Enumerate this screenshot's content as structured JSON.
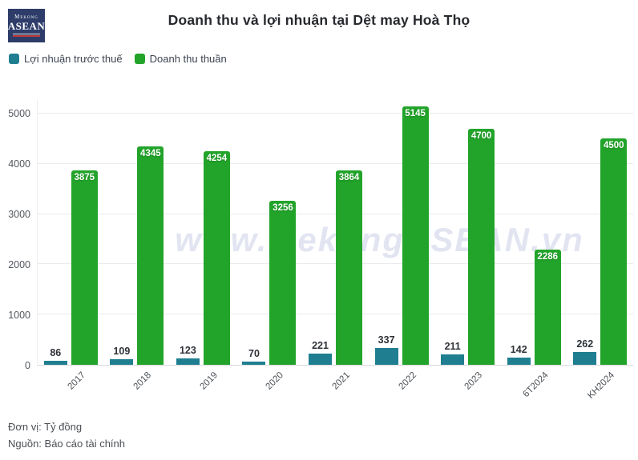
{
  "logo": {
    "line1": "Mekong",
    "line2": "ASEAN"
  },
  "header": {
    "title": "Doanh thu và lợi nhuận tại Dệt may Hoà Thọ"
  },
  "watermark": "www.MekongASEAN.vn",
  "footer": {
    "unit": "Đơn vị: Tỷ đồng",
    "source": "Nguồn: Báo cáo tài chính"
  },
  "colors": {
    "profit": "#1f7f91",
    "revenue": "#22a42a",
    "logo_bg": "#2d3c69",
    "watermark": "#b9c1de"
  },
  "chart_data": {
    "type": "bar",
    "title": "Doanh thu và lợi nhuận tại Dệt may Hoà Thọ",
    "categories": [
      "2017",
      "2018",
      "2019",
      "2020",
      "2021",
      "2022",
      "2023",
      "6T2024",
      "KH2024"
    ],
    "series": [
      {
        "name": "Lợi nhuận trước thuế",
        "color": "#1f7f91",
        "label_position": "above",
        "values": [
          86,
          109,
          123,
          70,
          221,
          337,
          211,
          142,
          262
        ]
      },
      {
        "name": "Doanh thu thuần",
        "color": "#22a42a",
        "label_position": "inside",
        "values": [
          3875,
          4345,
          4254,
          3256,
          3864,
          5145,
          4700,
          2286,
          4500
        ]
      }
    ],
    "xlabel": "",
    "ylabel": "",
    "yticks": [
      0,
      1000,
      2000,
      3000,
      4000,
      5000
    ],
    "ylim": [
      0,
      5300
    ],
    "grid": true,
    "legend_position": "top-left",
    "unit": "Tỷ đồng"
  }
}
